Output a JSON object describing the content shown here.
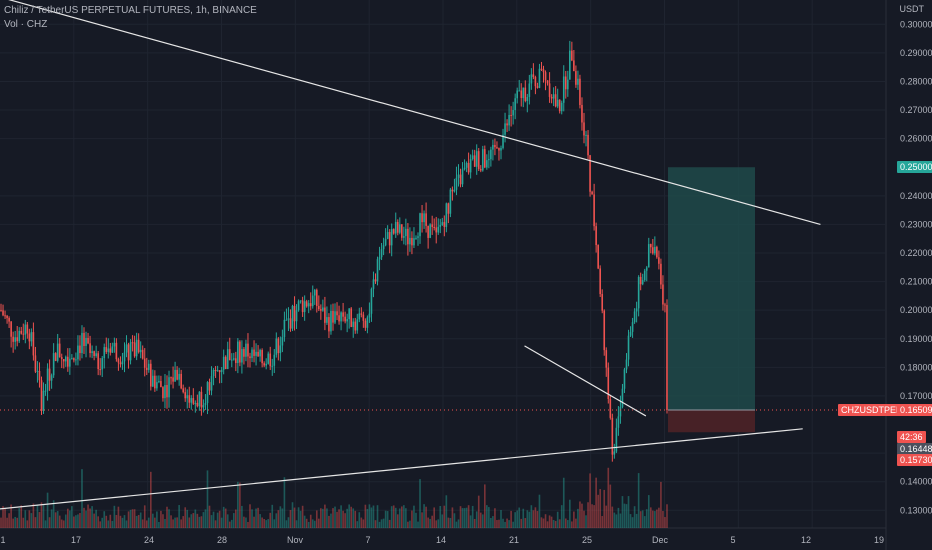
{
  "header": {
    "title": "Chiliz / TetherUS PERPETUAL FUTURES, 1h, BINANCE",
    "volume_label": "Vol · CHZ"
  },
  "price_axis": {
    "unit": "USDT",
    "ticks": [
      "0.30000",
      "0.29000",
      "0.28000",
      "0.27000",
      "0.26000",
      "0.24000",
      "0.23000",
      "0.22000",
      "0.21000",
      "0.20000",
      "0.19000",
      "0.18000",
      "0.17000",
      "0.15000",
      "0.14000",
      "0.13000"
    ]
  },
  "time_axis": {
    "ticks": [
      "1",
      "17",
      "24",
      "28",
      "Nov",
      "7",
      "14",
      "21",
      "25",
      "Dec",
      "5",
      "12",
      "19"
    ]
  },
  "badges": {
    "target": "0.25000",
    "symbol": "CHZUSDTPERP",
    "last_price": "0.16509",
    "countdown": "42:36",
    "stop_upper": "0.16448",
    "stop_lower": "0.15730"
  },
  "colors": {
    "background": "#161a25",
    "up": "#26a69a",
    "down": "#ef5350",
    "target_zone": "#1e4a4a",
    "stop_zone": "#4a2226",
    "trendline": "#e6e6e6",
    "grid": "#1f2430"
  },
  "chart_data": {
    "type": "candlestick",
    "y_range": [
      0.128,
      0.305
    ],
    "x_range_days": [
      1,
      50
    ],
    "price_path": [
      [
        1,
        0.2
      ],
      [
        2,
        0.191
      ],
      [
        3,
        0.195
      ],
      [
        4,
        0.168
      ],
      [
        5,
        0.186
      ],
      [
        6,
        0.184
      ],
      [
        7,
        0.189
      ],
      [
        8,
        0.181
      ],
      [
        9,
        0.188
      ],
      [
        10,
        0.184
      ],
      [
        11,
        0.186
      ],
      [
        12,
        0.177
      ],
      [
        13,
        0.172
      ],
      [
        14,
        0.179
      ],
      [
        15,
        0.167
      ],
      [
        16,
        0.171
      ],
      [
        17,
        0.18
      ],
      [
        18,
        0.185
      ],
      [
        19,
        0.186
      ],
      [
        20,
        0.182
      ],
      [
        21,
        0.184
      ],
      [
        22,
        0.195
      ],
      [
        23,
        0.202
      ],
      [
        24,
        0.204
      ],
      [
        25,
        0.196
      ],
      [
        26,
        0.199
      ],
      [
        27,
        0.196
      ],
      [
        28,
        0.198
      ],
      [
        29,
        0.222
      ],
      [
        30,
        0.228
      ],
      [
        31,
        0.225
      ],
      [
        32,
        0.232
      ],
      [
        33,
        0.225
      ],
      [
        34,
        0.238
      ],
      [
        35,
        0.248
      ],
      [
        36,
        0.253
      ],
      [
        37,
        0.252
      ],
      [
        38,
        0.262
      ],
      [
        39,
        0.274
      ],
      [
        40,
        0.279
      ],
      [
        41,
        0.283
      ],
      [
        42,
        0.27
      ],
      [
        43,
        0.29
      ],
      [
        44,
        0.262
      ],
      [
        45,
        0.213
      ],
      [
        46,
        0.149
      ],
      [
        47,
        0.183
      ],
      [
        48,
        0.21
      ],
      [
        49,
        0.224
      ],
      [
        50,
        0.198
      ]
    ],
    "annotations": {
      "upper_trendline": {
        "from": [
          0.0,
          0.3095
        ],
        "to": [
          0.926,
          0.23
        ]
      },
      "lower_trendline": {
        "from": [
          0.0,
          0.1305
        ],
        "to": [
          0.906,
          0.1585
        ]
      },
      "local_trendline": {
        "from": [
          0.592,
          0.1875
        ],
        "to": [
          0.729,
          0.163
        ]
      },
      "long_position": {
        "entry": 0.16509,
        "target": 0.25,
        "stop": 0.1573
      }
    }
  }
}
